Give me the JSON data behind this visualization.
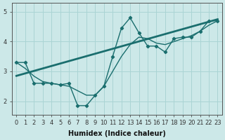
{
  "title": "",
  "xlabel": "Humidex (Indice chaleur)",
  "background_color": "#cce8e8",
  "grid_color": "#aad4d4",
  "line_color": "#1a6e6e",
  "x_curve": [
    0,
    1,
    2,
    3,
    4,
    5,
    6,
    7,
    8,
    9,
    10,
    11,
    12,
    13,
    14,
    15,
    16,
    17,
    18,
    19,
    20,
    21,
    22,
    23
  ],
  "y_curve": [
    3.3,
    3.3,
    2.6,
    2.6,
    2.6,
    2.55,
    2.6,
    1.85,
    1.85,
    2.2,
    2.5,
    3.5,
    4.45,
    4.8,
    4.3,
    3.85,
    3.85,
    3.65,
    4.1,
    4.15,
    4.15,
    4.35,
    4.7,
    4.7
  ],
  "y_smooth": [
    3.3,
    3.1,
    2.84,
    2.66,
    2.6,
    2.55,
    2.5,
    2.35,
    2.2,
    2.2,
    2.5,
    3.0,
    3.5,
    3.9,
    4.15,
    4.1,
    3.95,
    3.9,
    4.0,
    4.1,
    4.2,
    4.35,
    4.55,
    4.7
  ],
  "trend_x": [
    0,
    23
  ],
  "trend_y": [
    2.85,
    4.75
  ],
  "xlim": [
    -0.5,
    23.5
  ],
  "ylim": [
    1.55,
    5.3
  ],
  "yticks": [
    2,
    3,
    4,
    5
  ],
  "xticks": [
    0,
    1,
    2,
    3,
    4,
    5,
    6,
    7,
    8,
    9,
    10,
    11,
    12,
    13,
    14,
    15,
    16,
    17,
    18,
    19,
    20,
    21,
    22,
    23
  ],
  "tick_fontsize": 6,
  "xlabel_fontsize": 7
}
